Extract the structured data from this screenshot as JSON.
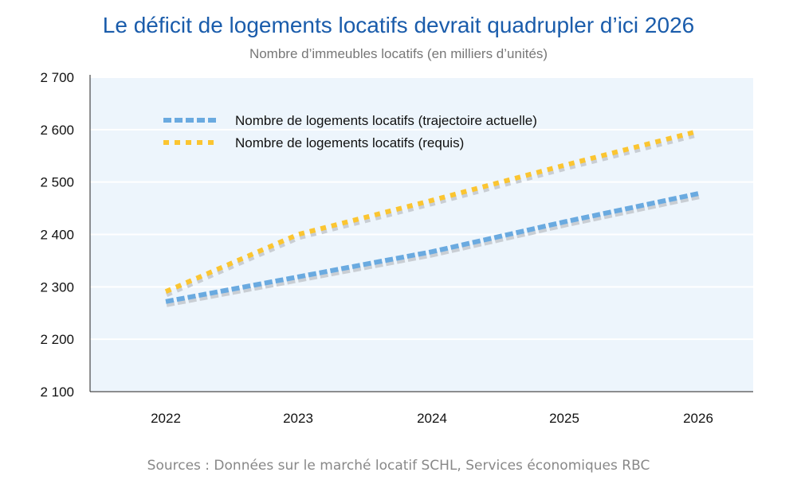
{
  "chart_data": {
    "type": "line",
    "title": "Le déficit de logements locatifs devrait quadrupler d’ici 2026",
    "subtitle": "Nombre d’immeubles locatifs (en milliers d’unités)",
    "x": [
      "2022",
      "2023",
      "2024",
      "2025",
      "2026"
    ],
    "ylim": [
      2100,
      2700
    ],
    "yticks": [
      "2 100",
      "2 200",
      "2 300",
      "2 400",
      "2 500",
      "2 600",
      "2 700"
    ],
    "ytick_values": [
      2100,
      2200,
      2300,
      2400,
      2500,
      2600,
      2700
    ],
    "grid": true,
    "legend_position": "top-left",
    "series": [
      {
        "name": "Nombre de logements locatifs (trajectoire actuelle)",
        "color": "#6aaae0",
        "values": [
          2272,
          2319,
          2367,
          2424,
          2478
        ]
      },
      {
        "name": "Nombre de logements locatifs (requis)",
        "color": "#fbc531",
        "values": [
          2291,
          2400,
          2465,
          2532,
          2597
        ]
      }
    ],
    "source": "Sources : Données sur le marché locatif SCHL, Services économiques RBC"
  }
}
